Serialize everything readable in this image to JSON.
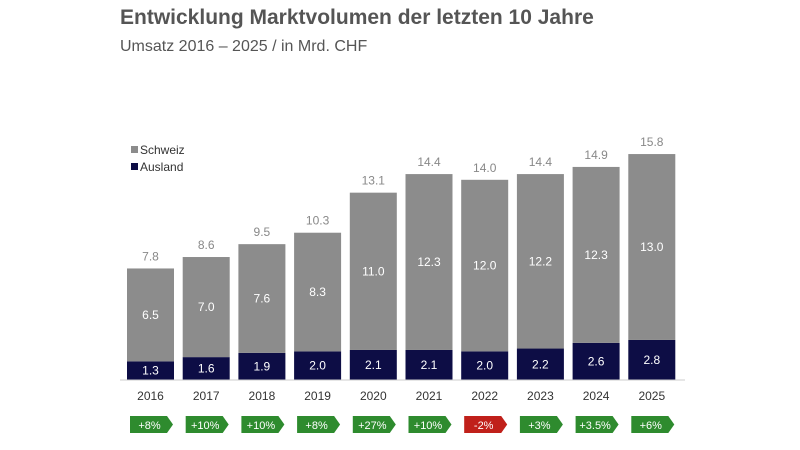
{
  "chart_data": {
    "type": "bar",
    "stacked": true,
    "title": "Entwicklung Marktvolumen der letzten 10 Jahre",
    "subtitle": "Umsatz 2016 – 2025 / in Mrd. CHF",
    "categories": [
      "2016",
      "2017",
      "2018",
      "2019",
      "2020",
      "2021",
      "2022",
      "2023",
      "2024",
      "2025"
    ],
    "series": [
      {
        "name": "Ausland",
        "color": "#0d0d45",
        "values": [
          1.3,
          1.6,
          1.9,
          2.0,
          2.1,
          2.1,
          2.0,
          2.2,
          2.6,
          2.8
        ]
      },
      {
        "name": "Schweiz",
        "color": "#8c8c8c",
        "values": [
          6.5,
          7.0,
          7.6,
          8.3,
          11.0,
          12.3,
          12.0,
          12.2,
          12.3,
          13.0
        ]
      }
    ],
    "totals": [
      7.8,
      8.6,
      9.5,
      10.3,
      13.1,
      14.4,
      14.0,
      14.4,
      14.9,
      15.8
    ],
    "growth": [
      {
        "label": "+8%",
        "color": "#2e8b2e"
      },
      {
        "label": "+10%",
        "color": "#2e8b2e"
      },
      {
        "label": "+10%",
        "color": "#2e8b2e"
      },
      {
        "label": "+8%",
        "color": "#2e8b2e"
      },
      {
        "label": "+27%",
        "color": "#2e8b2e"
      },
      {
        "label": "+10%",
        "color": "#2e8b2e"
      },
      {
        "label": "-2%",
        "color": "#c0201a"
      },
      {
        "label": "+3%",
        "color": "#2e8b2e"
      },
      {
        "label": "+3.5%",
        "color": "#2e8b2e"
      },
      {
        "label": "+6%",
        "color": "#2e8b2e"
      }
    ],
    "legend_position": "top-left",
    "ylim": [
      0,
      16
    ],
    "grid": false
  }
}
